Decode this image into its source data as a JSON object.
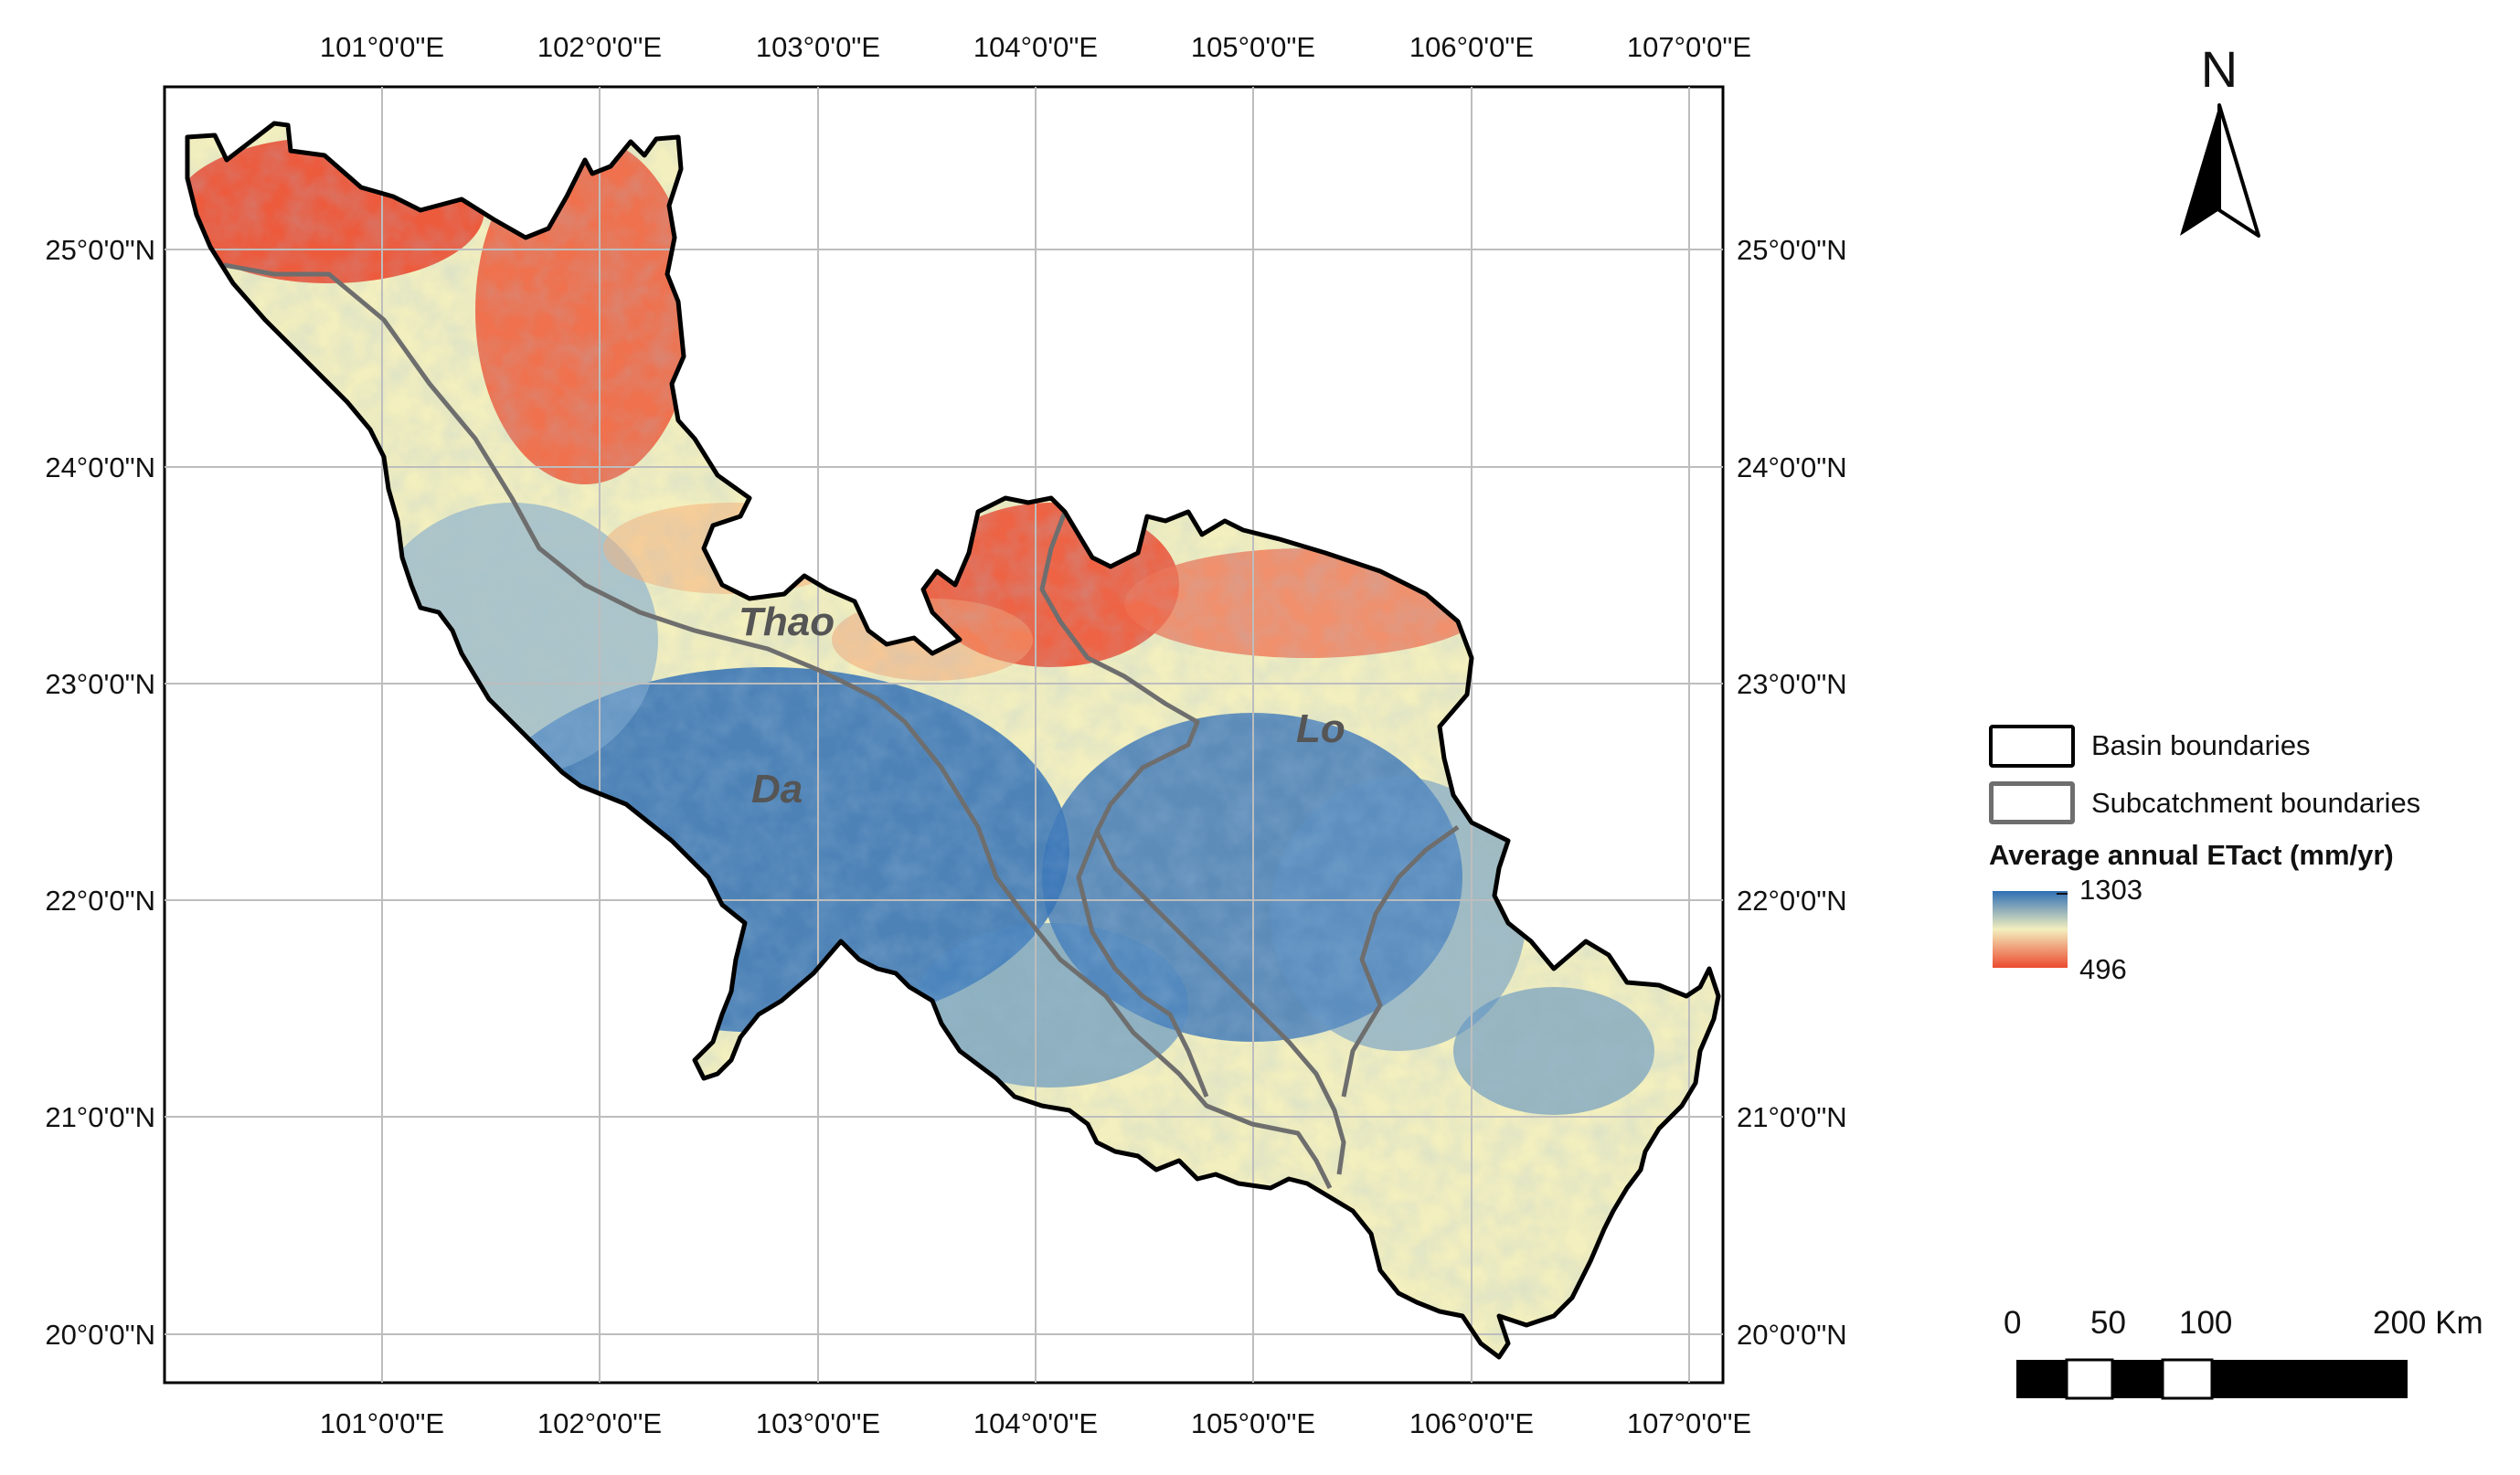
{
  "map": {
    "longitude_labels": [
      "101°0'0\"E",
      "102°0'0\"E",
      "103°0'0\"E",
      "104°0'0\"E",
      "105°0'0\"E",
      "106°0'0\"E",
      "107°0'0\"E"
    ],
    "latitude_labels": [
      "25°0'0\"N",
      "24°0'0\"N",
      "23°0'0\"N",
      "22°0'0\"N",
      "21°0'0\"N",
      "20°0'0\"N"
    ],
    "subbasins": [
      {
        "name": "Thao"
      },
      {
        "name": "Da"
      },
      {
        "name": "Lo"
      }
    ],
    "colors": {
      "high": "#2f6fb5",
      "mid": "#f3efbe",
      "low": "#ec4a2f",
      "basin_outline": "#000000",
      "subcatchment_outline": "#6e6e6e",
      "grid": "#bdbdbd"
    }
  },
  "north_arrow": {
    "label": "N"
  },
  "legend": {
    "basin_label": "Basin boundaries",
    "subcatchment_label": "Subcatchment boundaries",
    "ramp_title": "Average annual ETact (mm/yr)",
    "ramp_max": "1303",
    "ramp_min": "496"
  },
  "scale_bar": {
    "labels": [
      "0",
      "50",
      "100",
      "200 Km"
    ]
  }
}
